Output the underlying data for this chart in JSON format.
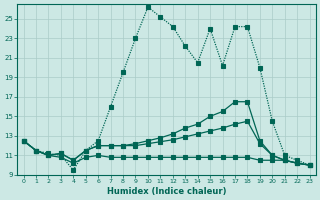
{
  "background_color": "#cce8e4",
  "grid_color": "#aaccc8",
  "line_color": "#006655",
  "xlabel": "Humidex (Indice chaleur)",
  "xlim": [
    -0.5,
    23.5
  ],
  "ylim": [
    9,
    26.5
  ],
  "xticks": [
    0,
    1,
    2,
    3,
    4,
    5,
    6,
    7,
    8,
    9,
    10,
    11,
    12,
    13,
    14,
    15,
    16,
    17,
    18,
    19,
    20,
    21,
    22,
    23
  ],
  "yticks": [
    9,
    11,
    13,
    15,
    17,
    19,
    21,
    23,
    25
  ],
  "line1_x": [
    0,
    1,
    2,
    3,
    4,
    5,
    6,
    7,
    8,
    9,
    10,
    11,
    12,
    13,
    14,
    15,
    16,
    17,
    18,
    19,
    20,
    21,
    22,
    23
  ],
  "line1_y": [
    12.5,
    11.5,
    11.2,
    11.0,
    9.5,
    11.5,
    12.5,
    16.0,
    19.5,
    23.0,
    26.2,
    25.2,
    24.2,
    22.2,
    20.5,
    24.0,
    20.2,
    24.2,
    24.2,
    20.0,
    14.5,
    11.0,
    10.5,
    10.0
  ],
  "line2_x": [
    0,
    1,
    2,
    3,
    4,
    5,
    6,
    7,
    8,
    9,
    10,
    11,
    12,
    13,
    14,
    15,
    16,
    17,
    18,
    19,
    20,
    21,
    22,
    23
  ],
  "line2_y": [
    12.5,
    11.5,
    11.0,
    11.2,
    10.5,
    11.5,
    12.0,
    12.0,
    12.0,
    12.2,
    12.5,
    12.8,
    13.2,
    13.8,
    14.2,
    15.0,
    15.5,
    16.5,
    16.5,
    12.5,
    11.0,
    10.5,
    10.2,
    10.0
  ],
  "line3_x": [
    0,
    1,
    2,
    3,
    4,
    5,
    6,
    7,
    8,
    9,
    10,
    11,
    12,
    13,
    14,
    15,
    16,
    17,
    18,
    19,
    20,
    21,
    22,
    23
  ],
  "line3_y": [
    12.5,
    11.5,
    11.0,
    11.2,
    10.5,
    11.5,
    12.0,
    12.0,
    12.0,
    12.0,
    12.2,
    12.4,
    12.6,
    12.9,
    13.2,
    13.5,
    13.8,
    14.2,
    14.5,
    12.2,
    11.0,
    10.5,
    10.2,
    10.0
  ],
  "line4_x": [
    0,
    1,
    2,
    3,
    4,
    5,
    6,
    7,
    8,
    9,
    10,
    11,
    12,
    13,
    14,
    15,
    16,
    17,
    18,
    19,
    20,
    21,
    22,
    23
  ],
  "line4_y": [
    12.5,
    11.5,
    11.0,
    10.8,
    10.2,
    10.8,
    11.0,
    10.8,
    10.8,
    10.8,
    10.8,
    10.8,
    10.8,
    10.8,
    10.8,
    10.8,
    10.8,
    10.8,
    10.8,
    10.5,
    10.5,
    10.5,
    10.2,
    10.0
  ]
}
